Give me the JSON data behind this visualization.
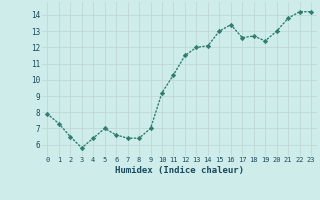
{
  "x": [
    0,
    1,
    2,
    3,
    4,
    5,
    6,
    7,
    8,
    9,
    10,
    11,
    12,
    13,
    14,
    15,
    16,
    17,
    18,
    19,
    20,
    21,
    22,
    23
  ],
  "y": [
    7.9,
    7.3,
    6.5,
    5.8,
    6.4,
    7.0,
    6.6,
    6.4,
    6.4,
    7.0,
    9.2,
    10.3,
    11.5,
    12.0,
    12.1,
    13.0,
    13.4,
    12.6,
    12.7,
    12.4,
    13.0,
    13.8,
    14.2,
    14.2
  ],
  "line_color": "#2e7d6e",
  "marker": "D",
  "marker_size": 2.2,
  "bg_color": "#ceecea",
  "grid_color": "#c0d8d6",
  "xlabel": "Humidex (Indice chaleur)",
  "xlabel_color": "#1a4a5e",
  "tick_color": "#1a4a5e",
  "ylim": [
    5.3,
    14.8
  ],
  "xlim": [
    -0.5,
    23.5
  ],
  "yticks": [
    6,
    7,
    8,
    9,
    10,
    11,
    12,
    13,
    14
  ],
  "xticks": [
    0,
    1,
    2,
    3,
    4,
    5,
    6,
    7,
    8,
    9,
    10,
    11,
    12,
    13,
    14,
    15,
    16,
    17,
    18,
    19,
    20,
    21,
    22,
    23
  ],
  "line_width": 1.0
}
